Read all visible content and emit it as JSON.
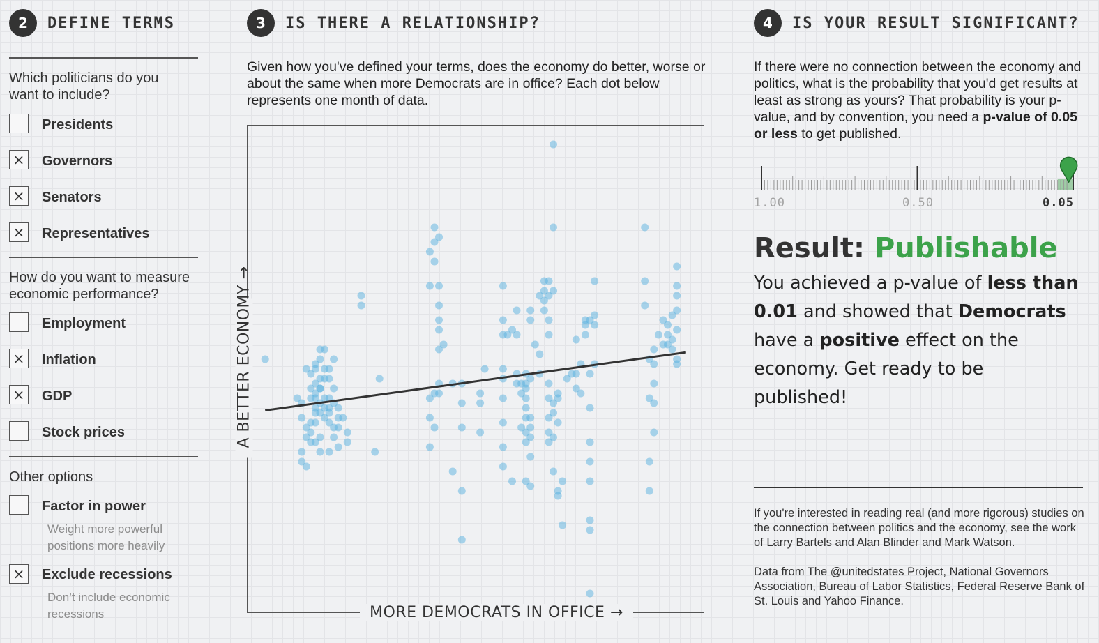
{
  "section2": {
    "number": "2",
    "title": "DEFINE TERMS",
    "q_politicians": "Which politicians do you want to include?",
    "politicians": [
      {
        "label": "Presidents",
        "checked": false
      },
      {
        "label": "Governors",
        "checked": true
      },
      {
        "label": "Senators",
        "checked": true
      },
      {
        "label": "Representatives",
        "checked": true
      }
    ],
    "q_measure": "How do you want to measure economic performance?",
    "measures": [
      {
        "label": "Employment",
        "checked": false
      },
      {
        "label": "Inflation",
        "checked": true
      },
      {
        "label": "GDP",
        "checked": true
      },
      {
        "label": "Stock prices",
        "checked": false
      }
    ],
    "other_heading": "Other options",
    "other_options": [
      {
        "label": "Factor in power",
        "checked": false,
        "description": "Weight more powerful positions more heavily"
      },
      {
        "label": "Exclude recessions",
        "checked": true,
        "description": "Don’t include economic recessions"
      }
    ],
    "check_mark": "×"
  },
  "section3": {
    "number": "3",
    "title": "IS THERE A RELATIONSHIP?",
    "intro": "Given how you've defined your terms, does the economy do better, worse or about the same when more Democrats are in office? Each dot below represents one month of data."
  },
  "section4": {
    "number": "4",
    "title": "IS YOUR RESULT SIGNIFICANT?",
    "intro_plain": "If there were no connection between the economy and politics, what is the probability that you'd get results at least as strong as yours? That probability is your p-value, and by convention, you need a ",
    "intro_bold": "p-value of 0.05 or less",
    "intro_end": " to get published.",
    "slider_labels": [
      "1.00",
      "0.50",
      "0.05"
    ],
    "slider_value": 0.05,
    "result_prefix": "Result: ",
    "result_word": "Publishable",
    "result_parts": {
      "p1": "You achieved a p-value of ",
      "b1": "less than 0.01",
      "p2": " and showed that ",
      "b2": "Democrats",
      "p3": " have a ",
      "b3": "positive",
      "p4": " effect on the economy. Get ready to be published!"
    },
    "footnote1": "If you're interested in reading real (and more rigorous) studies on the connection between politics and the economy, see the work of Larry Bartels and Alan Blinder and Mark Watson.",
    "footnote2": "Data from The @unitedstates Project, National Governors Association, Bureau of Labor Statistics, Federal Reserve Bank of St. Louis and Yahoo Finance."
  },
  "colors": {
    "background": "#f0f1f3",
    "dot": "#5ab2e0",
    "trend": "#333333",
    "publishable": "#3ca24a",
    "pin": "#3ca24a"
  },
  "chart_data": {
    "type": "scatter",
    "xlabel": "MORE DEMOCRATS IN OFFICE →",
    "ylabel": "A BETTER ECONOMY →",
    "xlim": [
      0,
      100
    ],
    "ylim": [
      0,
      100
    ],
    "trend": {
      "x": [
        4,
        96
      ],
      "y": [
        41.5,
        53.4
      ]
    },
    "points": [
      [
        4,
        52
      ],
      [
        11,
        44
      ],
      [
        12,
        43
      ],
      [
        12,
        40
      ],
      [
        13,
        38
      ],
      [
        14,
        39
      ],
      [
        13,
        36
      ],
      [
        14,
        35
      ],
      [
        15,
        35
      ],
      [
        15,
        39
      ],
      [
        12,
        33
      ],
      [
        12,
        31
      ],
      [
        13,
        30
      ],
      [
        14,
        37
      ],
      [
        15,
        41
      ],
      [
        13,
        50
      ],
      [
        14,
        49
      ],
      [
        15,
        47
      ],
      [
        14,
        46
      ],
      [
        15,
        45
      ],
      [
        16,
        46
      ],
      [
        15,
        44
      ],
      [
        16,
        43
      ],
      [
        17,
        42
      ],
      [
        16,
        41
      ],
      [
        15,
        50
      ],
      [
        16,
        48
      ],
      [
        17,
        50
      ],
      [
        17,
        48
      ],
      [
        18,
        50
      ],
      [
        16,
        52
      ],
      [
        18,
        44
      ],
      [
        18,
        42
      ],
      [
        17,
        40
      ],
      [
        19,
        43
      ],
      [
        18,
        39
      ],
      [
        19,
        38
      ],
      [
        20,
        40
      ],
      [
        19,
        36
      ],
      [
        18,
        33
      ],
      [
        20,
        34
      ],
      [
        16,
        36
      ],
      [
        22,
        35
      ],
      [
        22,
        37
      ],
      [
        20,
        42
      ],
      [
        17,
        54
      ],
      [
        19,
        52
      ],
      [
        16,
        54
      ],
      [
        15,
        51
      ],
      [
        18,
        48
      ],
      [
        19,
        46
      ],
      [
        14,
        44
      ],
      [
        17,
        44
      ],
      [
        16,
        46
      ],
      [
        15,
        42
      ],
      [
        18,
        41
      ],
      [
        21,
        40
      ],
      [
        20,
        38
      ],
      [
        16,
        33
      ],
      [
        25,
        65
      ],
      [
        25,
        63
      ],
      [
        29,
        48
      ],
      [
        28,
        33
      ],
      [
        41,
        79
      ],
      [
        42,
        77
      ],
      [
        41,
        76
      ],
      [
        40,
        74
      ],
      [
        41,
        72
      ],
      [
        40,
        67
      ],
      [
        42,
        67
      ],
      [
        42,
        63
      ],
      [
        42,
        60
      ],
      [
        42,
        58
      ],
      [
        43,
        55
      ],
      [
        42,
        54
      ],
      [
        42,
        47
      ],
      [
        42,
        45
      ],
      [
        41,
        45
      ],
      [
        40,
        44
      ],
      [
        40,
        40
      ],
      [
        41,
        38
      ],
      [
        40,
        34
      ],
      [
        45,
        47
      ],
      [
        47,
        47
      ],
      [
        47,
        43
      ],
      [
        47,
        38
      ],
      [
        45,
        29
      ],
      [
        47,
        25
      ],
      [
        47,
        15
      ],
      [
        52,
        50
      ],
      [
        51,
        45
      ],
      [
        51,
        43
      ],
      [
        51,
        37
      ],
      [
        56,
        67
      ],
      [
        56,
        60
      ],
      [
        56,
        57
      ],
      [
        56,
        50
      ],
      [
        56,
        48
      ],
      [
        56,
        44
      ],
      [
        56,
        39
      ],
      [
        56,
        34
      ],
      [
        56,
        30
      ],
      [
        58,
        58
      ],
      [
        57,
        57
      ],
      [
        59,
        49
      ],
      [
        59,
        47
      ],
      [
        60,
        47
      ],
      [
        60,
        45
      ],
      [
        61,
        49
      ],
      [
        61,
        47
      ],
      [
        62,
        48
      ],
      [
        61,
        46
      ],
      [
        61,
        44
      ],
      [
        61,
        42
      ],
      [
        61,
        40
      ],
      [
        60,
        38
      ],
      [
        61,
        37
      ],
      [
        62,
        40
      ],
      [
        62,
        38
      ],
      [
        62,
        36
      ],
      [
        61,
        35
      ],
      [
        62,
        32
      ],
      [
        61,
        27
      ],
      [
        58,
        27
      ],
      [
        62,
        26
      ],
      [
        59,
        62
      ],
      [
        59,
        57
      ],
      [
        62,
        62
      ],
      [
        62,
        60
      ],
      [
        63,
        55
      ],
      [
        64,
        53
      ],
      [
        64,
        49
      ],
      [
        65,
        66
      ],
      [
        64,
        65
      ],
      [
        65,
        68
      ],
      [
        66,
        68
      ],
      [
        65,
        64
      ],
      [
        65,
        62
      ],
      [
        66,
        65
      ],
      [
        67,
        66
      ],
      [
        66,
        60
      ],
      [
        66,
        57
      ],
      [
        67,
        43
      ],
      [
        67,
        41
      ],
      [
        68,
        44
      ],
      [
        66,
        44
      ],
      [
        66,
        37
      ],
      [
        67,
        36
      ],
      [
        68,
        45
      ],
      [
        70,
        48
      ],
      [
        71,
        49
      ],
      [
        66,
        47
      ],
      [
        66,
        40
      ],
      [
        68,
        39
      ],
      [
        66,
        35
      ],
      [
        67,
        29
      ],
      [
        68,
        25
      ],
      [
        69,
        27
      ],
      [
        68,
        24
      ],
      [
        69,
        18
      ],
      [
        67,
        96
      ],
      [
        67,
        79
      ],
      [
        72,
        49
      ],
      [
        72,
        46
      ],
      [
        73,
        51
      ],
      [
        73,
        45
      ],
      [
        72,
        56
      ],
      [
        74,
        60
      ],
      [
        74,
        59
      ],
      [
        74,
        57
      ],
      [
        75,
        60
      ],
      [
        76,
        61
      ],
      [
        76,
        59
      ],
      [
        76,
        51
      ],
      [
        75,
        49
      ],
      [
        76,
        68
      ],
      [
        75,
        42
      ],
      [
        75,
        35
      ],
      [
        75,
        31
      ],
      [
        75,
        27
      ],
      [
        75,
        19
      ],
      [
        75,
        17
      ],
      [
        75,
        4
      ],
      [
        87,
        79
      ],
      [
        87,
        68
      ],
      [
        87,
        63
      ],
      [
        88,
        52
      ],
      [
        89,
        54
      ],
      [
        89,
        51
      ],
      [
        89,
        47
      ],
      [
        88,
        44
      ],
      [
        89,
        43
      ],
      [
        89,
        37
      ],
      [
        88,
        31
      ],
      [
        88,
        25
      ],
      [
        90,
        57
      ],
      [
        91,
        60
      ],
      [
        92,
        57
      ],
      [
        91,
        55
      ],
      [
        92,
        59
      ],
      [
        93,
        61
      ],
      [
        93,
        56
      ],
      [
        92,
        55
      ],
      [
        94,
        58
      ],
      [
        94,
        65
      ],
      [
        94,
        71
      ],
      [
        94,
        67
      ],
      [
        94,
        62
      ],
      [
        93,
        54
      ],
      [
        94,
        52
      ],
      [
        94,
        51
      ]
    ]
  }
}
